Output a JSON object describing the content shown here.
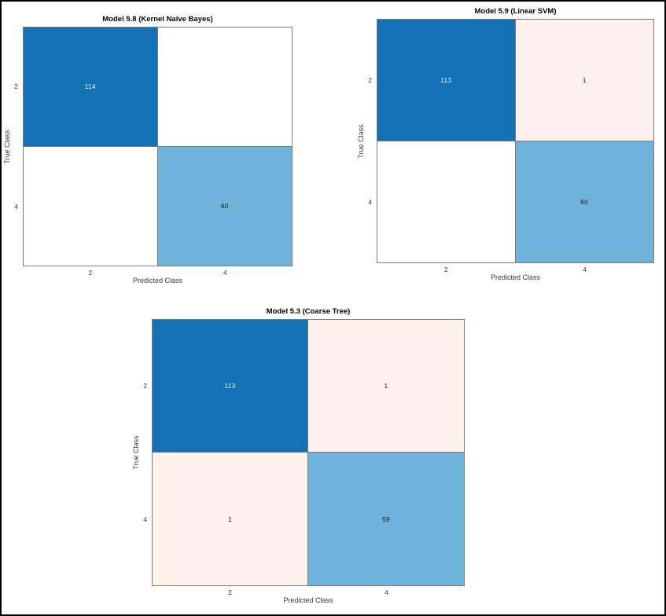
{
  "figure": {
    "background": "#ffffff",
    "frame_color": "#000000",
    "grid_line_color": "#7a7a7a"
  },
  "palette": {
    "diagonal_dark_blue": "#1272b4",
    "diagonal_light_blue": "#6fb2da",
    "off_diagonal_pink": "#fcf1eb",
    "zero_cell_white": "#ffffff",
    "value_text_on_dark": "#eaf2f8",
    "value_text_on_light": "#1a1a1a",
    "axis_text": "#3c3c3c",
    "title_text": "#000000"
  },
  "chart_data": [
    {
      "type": "heatmap",
      "title": "Model 5.8 (Kernel Naive Bayes)",
      "xlabel": "Predicted Class",
      "ylabel": "True Class",
      "x_categories": [
        "2",
        "4"
      ],
      "y_categories": [
        "2",
        "4"
      ],
      "matrix": [
        [
          114,
          null
        ],
        [
          null,
          60
        ]
      ],
      "cells": [
        {
          "value": "114",
          "bg": "#1272b4",
          "fg": "#eaf2f8"
        },
        {
          "value": "",
          "bg": "#ffffff",
          "fg": "#1a1a1a"
        },
        {
          "value": "",
          "bg": "#ffffff",
          "fg": "#1a1a1a"
        },
        {
          "value": "60",
          "bg": "#6fb2da",
          "fg": "#1a1a1a"
        }
      ]
    },
    {
      "type": "heatmap",
      "title": "Model 5.9 (Linear SVM)",
      "xlabel": "Predicted Class",
      "ylabel": "True Class",
      "x_categories": [
        "2",
        "4"
      ],
      "y_categories": [
        "2",
        "4"
      ],
      "matrix": [
        [
          113,
          1
        ],
        [
          null,
          60
        ]
      ],
      "cells": [
        {
          "value": "113",
          "bg": "#1272b4",
          "fg": "#eaf2f8"
        },
        {
          "value": "1",
          "bg": "#fcf1eb",
          "fg": "#1a1a1a"
        },
        {
          "value": "",
          "bg": "#ffffff",
          "fg": "#1a1a1a"
        },
        {
          "value": "60",
          "bg": "#6fb2da",
          "fg": "#1a1a1a"
        }
      ]
    },
    {
      "type": "heatmap",
      "title": "Model 5.3 (Coarse Tree)",
      "xlabel": "Predicted Class",
      "ylabel": "True Class",
      "x_categories": [
        "2",
        "4"
      ],
      "y_categories": [
        "2",
        "4"
      ],
      "matrix": [
        [
          113,
          1
        ],
        [
          1,
          59
        ]
      ],
      "cells": [
        {
          "value": "113",
          "bg": "#1272b4",
          "fg": "#eaf2f8"
        },
        {
          "value": "1",
          "bg": "#fcf1eb",
          "fg": "#1a1a1a"
        },
        {
          "value": "1",
          "bg": "#fcf1eb",
          "fg": "#1a1a1a"
        },
        {
          "value": "59",
          "bg": "#6fb2da",
          "fg": "#1a1a1a"
        }
      ]
    }
  ]
}
